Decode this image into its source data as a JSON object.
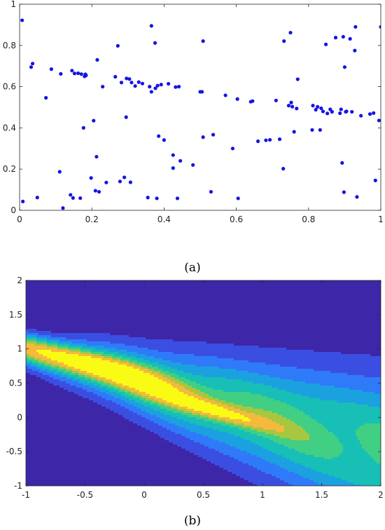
{
  "figures": {
    "captions": {
      "a": "(a)",
      "b": "(b)"
    }
  },
  "chart_data": [
    {
      "type": "scatter",
      "title": "",
      "xlabel": "",
      "ylabel": "",
      "xlim": [
        0,
        1
      ],
      "ylim": [
        0,
        1
      ],
      "xticks": [
        "0",
        "0.2",
        "0.4",
        "0.6",
        "0.8",
        "1"
      ],
      "xtick_values": [
        0,
        0.2,
        0.4,
        0.6,
        0.8,
        1
      ],
      "yticks": [
        "0",
        "0.2",
        "0.4",
        "0.6",
        "0.8",
        "1"
      ],
      "ytick_values": [
        0,
        0.2,
        0.4,
        0.6,
        0.8,
        1
      ],
      "grid": false,
      "marker_color": "#1414e6",
      "points": [
        [
          0.007,
          0.922
        ],
        [
          0.009,
          0.043
        ],
        [
          0.032,
          0.695
        ],
        [
          0.036,
          0.712
        ],
        [
          0.049,
          0.062
        ],
        [
          0.073,
          0.546
        ],
        [
          0.088,
          0.685
        ],
        [
          0.111,
          0.187
        ],
        [
          0.114,
          0.662
        ],
        [
          0.12,
          0.011
        ],
        [
          0.141,
          0.075
        ],
        [
          0.145,
          0.678
        ],
        [
          0.148,
          0.06
        ],
        [
          0.152,
          0.664
        ],
        [
          0.162,
          0.665
        ],
        [
          0.168,
          0.059
        ],
        [
          0.171,
          0.661
        ],
        [
          0.177,
          0.4
        ],
        [
          0.18,
          0.65
        ],
        [
          0.182,
          0.66
        ],
        [
          0.184,
          0.655
        ],
        [
          0.198,
          0.157
        ],
        [
          0.205,
          0.435
        ],
        [
          0.21,
          0.095
        ],
        [
          0.213,
          0.26
        ],
        [
          0.215,
          0.73
        ],
        [
          0.22,
          0.09
        ],
        [
          0.23,
          0.6
        ],
        [
          0.24,
          0.135
        ],
        [
          0.265,
          0.648
        ],
        [
          0.272,
          0.798
        ],
        [
          0.278,
          0.14
        ],
        [
          0.282,
          0.62
        ],
        [
          0.29,
          0.16
        ],
        [
          0.295,
          0.452
        ],
        [
          0.296,
          0.64
        ],
        [
          0.304,
          0.637
        ],
        [
          0.307,
          0.136
        ],
        [
          0.31,
          0.62
        ],
        [
          0.32,
          0.603
        ],
        [
          0.33,
          0.622
        ],
        [
          0.34,
          0.615
        ],
        [
          0.355,
          0.062
        ],
        [
          0.36,
          0.6
        ],
        [
          0.365,
          0.895
        ],
        [
          0.365,
          0.575
        ],
        [
          0.375,
          0.812
        ],
        [
          0.376,
          0.592
        ],
        [
          0.38,
          0.058
        ],
        [
          0.382,
          0.605
        ],
        [
          0.385,
          0.36
        ],
        [
          0.392,
          0.61
        ],
        [
          0.4,
          0.341
        ],
        [
          0.412,
          0.614
        ],
        [
          0.425,
          0.268
        ],
        [
          0.425,
          0.205
        ],
        [
          0.432,
          0.598
        ],
        [
          0.437,
          0.058
        ],
        [
          0.441,
          0.6
        ],
        [
          0.445,
          0.24
        ],
        [
          0.48,
          0.22
        ],
        [
          0.5,
          0.575
        ],
        [
          0.505,
          0.575
        ],
        [
          0.508,
          0.821
        ],
        [
          0.508,
          0.355
        ],
        [
          0.53,
          0.09
        ],
        [
          0.536,
          0.367
        ],
        [
          0.57,
          0.558
        ],
        [
          0.59,
          0.3
        ],
        [
          0.603,
          0.54
        ],
        [
          0.605,
          0.058
        ],
        [
          0.64,
          0.527
        ],
        [
          0.645,
          0.53
        ],
        [
          0.66,
          0.335
        ],
        [
          0.682,
          0.34
        ],
        [
          0.693,
          0.342
        ],
        [
          0.71,
          0.533
        ],
        [
          0.72,
          0.345
        ],
        [
          0.73,
          0.202
        ],
        [
          0.732,
          0.821
        ],
        [
          0.745,
          0.508
        ],
        [
          0.75,
          0.862
        ],
        [
          0.752,
          0.523
        ],
        [
          0.755,
          0.503
        ],
        [
          0.76,
          0.381
        ],
        [
          0.767,
          0.494
        ],
        [
          0.77,
          0.636
        ],
        [
          0.81,
          0.39
        ],
        [
          0.812,
          0.508
        ],
        [
          0.82,
          0.488
        ],
        [
          0.825,
          0.502
        ],
        [
          0.832,
          0.39
        ],
        [
          0.835,
          0.495
        ],
        [
          0.84,
          0.48
        ],
        [
          0.848,
          0.805
        ],
        [
          0.852,
          0.47
        ],
        [
          0.86,
          0.49
        ],
        [
          0.865,
          0.478
        ],
        [
          0.875,
          0.838
        ],
        [
          0.887,
          0.471
        ],
        [
          0.89,
          0.49
        ],
        [
          0.893,
          0.23
        ],
        [
          0.896,
          0.842
        ],
        [
          0.898,
          0.088
        ],
        [
          0.9,
          0.695
        ],
        [
          0.903,
          0.478
        ],
        [
          0.905,
          0.48
        ],
        [
          0.915,
          0.832
        ],
        [
          0.92,
          0.478
        ],
        [
          0.928,
          0.775
        ],
        [
          0.93,
          0.89
        ],
        [
          0.934,
          0.065
        ],
        [
          0.945,
          0.459
        ],
        [
          0.97,
          0.467
        ],
        [
          0.98,
          0.472
        ],
        [
          0.985,
          0.145
        ],
        [
          0.995,
          0.436
        ],
        [
          1.0,
          0.89
        ]
      ]
    },
    {
      "type": "heatmap",
      "subtype": "filled-contour",
      "title": "",
      "xlabel": "",
      "ylabel": "",
      "xlim": [
        -1,
        2
      ],
      "ylim": [
        -1,
        2
      ],
      "xticks": [
        "-1",
        "-0.5",
        "0",
        "0.5",
        "1",
        "1.5",
        "2"
      ],
      "xtick_values": [
        -1,
        -0.5,
        0,
        0.5,
        1,
        1.5,
        2
      ],
      "yticks": [
        "-1",
        "-0.5",
        "0",
        "0.5",
        "1",
        "1.5",
        "2"
      ],
      "ytick_values": [
        -1,
        -0.5,
        0,
        0.5,
        1,
        1.5,
        2
      ],
      "grid": false,
      "colormap": [
        "#3e26a8",
        "#3b4ee2",
        "#2f7af8",
        "#1ba1e0",
        "#17bfb6",
        "#40cf83",
        "#a6c73f",
        "#f5b93e",
        "#f9fb15"
      ],
      "band": {
        "slope": -0.5,
        "intercept": 0.5
      },
      "peaks": [
        {
          "x": -0.35,
          "y": 0.72,
          "level": 8.6,
          "length": 0.5,
          "width": 0.11
        },
        {
          "x": 0.55,
          "y": 0.12,
          "level": 7.3,
          "length": 0.42,
          "width": 0.08
        }
      ]
    }
  ]
}
